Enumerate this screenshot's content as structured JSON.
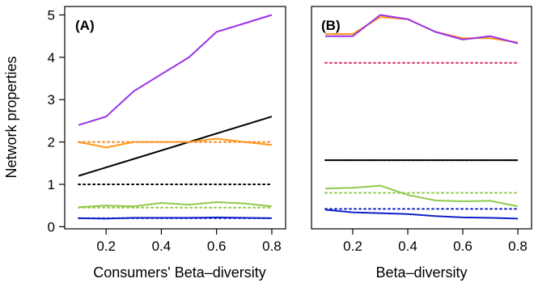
{
  "chart_data": [
    {
      "type": "line",
      "panel_label": "(A)",
      "xlabel": "Consumers' Beta–diversity",
      "ylabel": "Network properties",
      "xlim": [
        0.05,
        0.85
      ],
      "ylim": [
        -0.05,
        5.2
      ],
      "x_ticks": [
        "0.2",
        "0.4",
        "0.6",
        "0.8"
      ],
      "y_ticks": [
        "0",
        "1",
        "2",
        "3",
        "4",
        "5"
      ],
      "grid": false,
      "series": [
        {
          "color": "#9b30e8",
          "style": "solid",
          "x": [
            0.1,
            0.2,
            0.3,
            0.4,
            0.5,
            0.6,
            0.7,
            0.8
          ],
          "y": [
            2.4,
            2.6,
            3.2,
            3.6,
            4.0,
            4.6,
            4.8,
            5.0
          ]
        },
        {
          "color": "#000000",
          "style": "solid",
          "x": [
            0.1,
            0.8
          ],
          "y": [
            1.2,
            2.6
          ]
        },
        {
          "color": "#ff9a1a",
          "style": "solid",
          "x": [
            0.1,
            0.2,
            0.3,
            0.4,
            0.5,
            0.6,
            0.7,
            0.8
          ],
          "y": [
            2.0,
            1.87,
            2.0,
            2.0,
            2.0,
            2.08,
            2.0,
            1.93
          ]
        },
        {
          "color": "#8fca4a",
          "style": "solid",
          "x": [
            0.1,
            0.2,
            0.3,
            0.4,
            0.5,
            0.6,
            0.7,
            0.8
          ],
          "y": [
            0.46,
            0.5,
            0.48,
            0.56,
            0.52,
            0.58,
            0.55,
            0.48
          ]
        },
        {
          "color": "#1020c8",
          "style": "solid",
          "x": [
            0.1,
            0.2,
            0.3,
            0.4,
            0.5,
            0.6,
            0.7,
            0.8
          ],
          "y": [
            0.2,
            0.19,
            0.21,
            0.21,
            0.21,
            0.22,
            0.21,
            0.2
          ]
        },
        {
          "color": "#9b30e8",
          "style": "dotted",
          "x": [
            0.1,
            0.8
          ],
          "y": [
            2.0,
            2.0
          ]
        },
        {
          "color": "#ff9a1a",
          "style": "dotted",
          "x": [
            0.1,
            0.8
          ],
          "y": [
            2.0,
            2.0
          ]
        },
        {
          "color": "#000000",
          "style": "dotted",
          "x": [
            0.1,
            0.8
          ],
          "y": [
            1.0,
            1.0
          ]
        },
        {
          "color": "#8fca4a",
          "style": "dotted",
          "x": [
            0.1,
            0.8
          ],
          "y": [
            0.45,
            0.45
          ]
        },
        {
          "color": "#1020c8",
          "style": "dotted",
          "x": [
            0.1,
            0.8
          ],
          "y": [
            0.2,
            0.2
          ]
        }
      ]
    },
    {
      "type": "line",
      "panel_label": "(B)",
      "xlabel": "Beta–diversity",
      "ylabel": "",
      "xlim": [
        0.05,
        0.85
      ],
      "ylim": [
        -0.05,
        5.2
      ],
      "x_ticks": [
        "0.2",
        "0.4",
        "0.6",
        "0.8"
      ],
      "y_ticks": [],
      "grid": false,
      "series": [
        {
          "color": "#ff9a1a",
          "style": "solid",
          "x": [
            0.1,
            0.2,
            0.3,
            0.4,
            0.5,
            0.6,
            0.7,
            0.8
          ],
          "y": [
            4.55,
            4.55,
            4.95,
            4.9,
            4.6,
            4.45,
            4.45,
            4.35
          ]
        },
        {
          "color": "#9b30e8",
          "style": "solid",
          "x": [
            0.1,
            0.2,
            0.3,
            0.4,
            0.5,
            0.6,
            0.7,
            0.8
          ],
          "y": [
            4.5,
            4.5,
            5.0,
            4.9,
            4.6,
            4.42,
            4.5,
            4.33
          ]
        },
        {
          "color": "#ff9a1a",
          "style": "dotted",
          "x": [
            0.1,
            0.8
          ],
          "y": [
            3.87,
            3.87
          ]
        },
        {
          "color": "#d8368a",
          "style": "dotted",
          "x": [
            0.1,
            0.8
          ],
          "y": [
            3.87,
            3.87
          ]
        },
        {
          "color": "#000000",
          "style": "solid",
          "x": [
            0.1,
            0.8
          ],
          "y": [
            1.57,
            1.57
          ]
        },
        {
          "color": "#000000",
          "style": "dotted",
          "x": [
            0.1,
            0.8
          ],
          "y": [
            1.57,
            1.57
          ]
        },
        {
          "color": "#8fca4a",
          "style": "solid",
          "x": [
            0.1,
            0.2,
            0.3,
            0.4,
            0.5,
            0.6,
            0.7,
            0.8
          ],
          "y": [
            0.9,
            0.92,
            0.97,
            0.75,
            0.62,
            0.6,
            0.61,
            0.48
          ]
        },
        {
          "color": "#8fca4a",
          "style": "dotted",
          "x": [
            0.1,
            0.8
          ],
          "y": [
            0.8,
            0.8
          ]
        },
        {
          "color": "#1020c8",
          "style": "dotted",
          "x": [
            0.1,
            0.8
          ],
          "y": [
            0.42,
            0.42
          ]
        },
        {
          "color": "#1020c8",
          "style": "solid",
          "x": [
            0.1,
            0.2,
            0.3,
            0.4,
            0.5,
            0.6,
            0.7,
            0.8
          ],
          "y": [
            0.4,
            0.34,
            0.32,
            0.3,
            0.25,
            0.22,
            0.21,
            0.19
          ]
        }
      ]
    }
  ]
}
